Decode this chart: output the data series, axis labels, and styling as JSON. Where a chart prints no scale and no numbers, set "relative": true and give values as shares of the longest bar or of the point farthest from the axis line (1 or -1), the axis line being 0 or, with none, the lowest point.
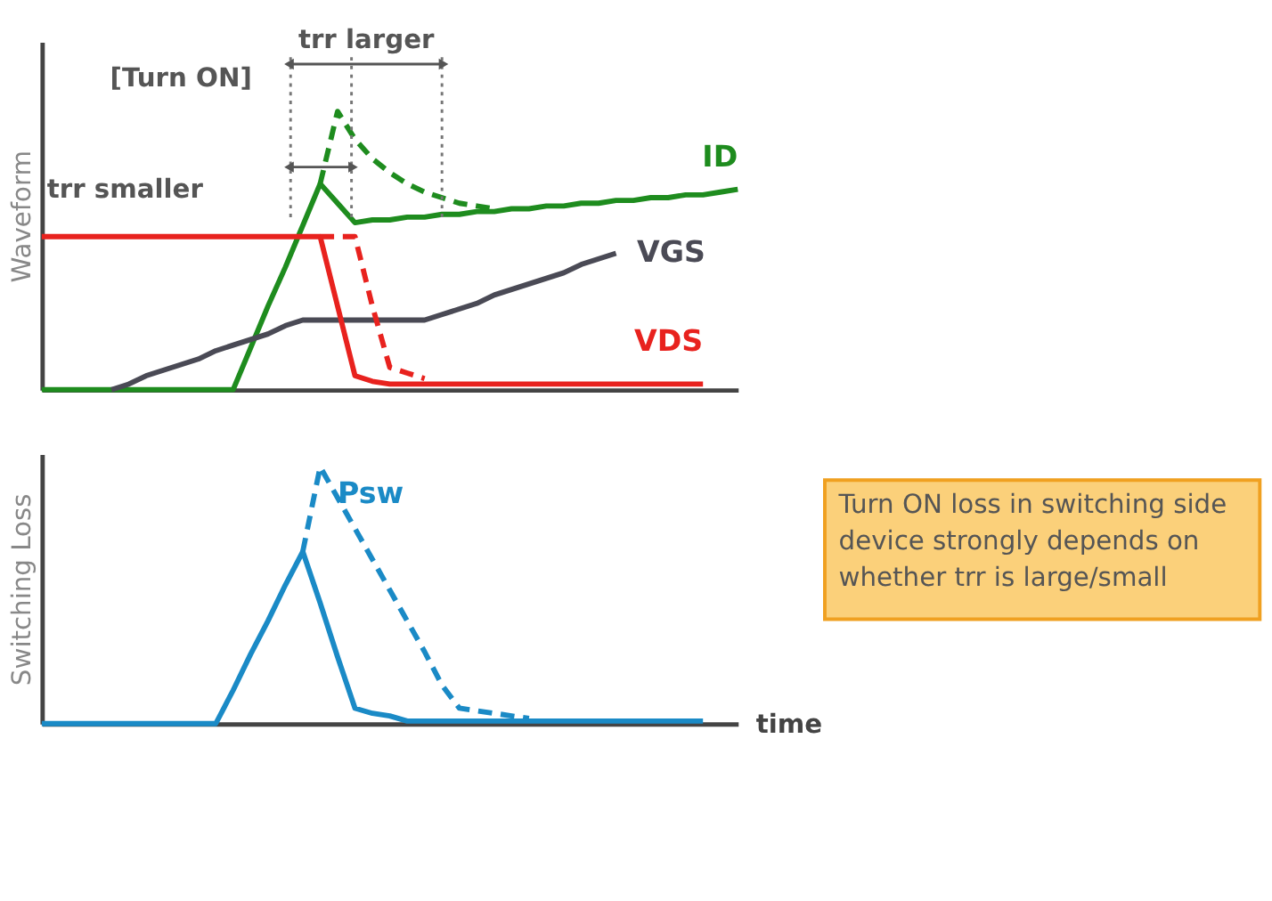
{
  "chart_data": [
    {
      "type": "line",
      "relative": true,
      "ylabel": "Waveform",
      "tick_labels": false,
      "categories": [
        null,
        null,
        null,
        null,
        null,
        null,
        null,
        null,
        null,
        null,
        null,
        null,
        null,
        null,
        null,
        null,
        null,
        null,
        null,
        null,
        null,
        null,
        null,
        null,
        null,
        null,
        null,
        null,
        null,
        null,
        null,
        null,
        null,
        null,
        null,
        null,
        null,
        null,
        null,
        null,
        null
      ],
      "annotations": [
        "[Turn ON]",
        "trr larger",
        "trr smaller"
      ],
      "series": [
        {
          "name": "ID",
          "color": "#1e8c1e",
          "line_style": "solid",
          "values": [
            0,
            0,
            0,
            0,
            0,
            0,
            0,
            0,
            0,
            0,
            0,
            0,
            0.15,
            0.3,
            0.44,
            0.59,
            0.74,
            0.67,
            0.6,
            0.61,
            0.61,
            0.62,
            0.62,
            0.63,
            0.63,
            0.64,
            0.64,
            0.65,
            0.65,
            0.66,
            0.66,
            0.67,
            0.67,
            0.68,
            0.68,
            0.69,
            0.69,
            0.7,
            0.7,
            0.71,
            0.72
          ]
        },
        {
          "color": "#1e8c1e",
          "line_style": "dashed",
          "values": [
            null,
            null,
            null,
            null,
            null,
            null,
            null,
            null,
            null,
            null,
            null,
            null,
            null,
            null,
            null,
            null,
            0.74,
            1.0,
            0.9,
            0.83,
            0.78,
            0.74,
            0.71,
            0.69,
            0.67,
            0.66,
            0.65,
            null,
            null,
            null,
            null,
            null,
            null,
            null,
            null,
            null,
            null,
            null,
            null,
            null,
            null
          ]
        },
        {
          "name": "VGS",
          "color": "#4a4a55",
          "line_style": "solid",
          "values": [
            null,
            null,
            null,
            null,
            0,
            0.02,
            0.05,
            0.07,
            0.09,
            0.11,
            0.14,
            0.16,
            0.18,
            0.2,
            0.23,
            0.25,
            0.25,
            0.25,
            0.25,
            0.25,
            0.25,
            0.25,
            0.25,
            0.27,
            0.29,
            0.31,
            0.34,
            0.36,
            0.38,
            0.4,
            0.42,
            0.45,
            0.47,
            0.49,
            null,
            null,
            null,
            null,
            null,
            null,
            null
          ]
        },
        {
          "name": "VDS",
          "color": "#e8221e",
          "line_style": "solid",
          "values": [
            0.55,
            0.55,
            0.55,
            0.55,
            0.55,
            0.55,
            0.55,
            0.55,
            0.55,
            0.55,
            0.55,
            0.55,
            0.55,
            0.55,
            0.55,
            0.55,
            0.55,
            0.3,
            0.05,
            0.03,
            0.02,
            0.02,
            0.02,
            0.02,
            0.02,
            0.02,
            0.02,
            0.02,
            0.02,
            0.02,
            0.02,
            0.02,
            0.02,
            0.02,
            0.02,
            0.02,
            0.02,
            0.02,
            0.02,
            null,
            null
          ]
        },
        {
          "color": "#e8221e",
          "line_style": "dashed",
          "values": [
            null,
            null,
            null,
            null,
            null,
            null,
            null,
            null,
            null,
            null,
            null,
            null,
            null,
            null,
            null,
            null,
            0.55,
            0.55,
            0.55,
            0.3,
            0.08,
            0.06,
            0.04,
            null,
            null,
            null,
            null,
            null,
            null,
            null,
            null,
            null,
            null,
            null,
            null,
            null,
            null,
            null,
            null,
            null,
            null
          ]
        }
      ]
    },
    {
      "type": "line",
      "relative": true,
      "ylabel": "Switching Loss",
      "xlabel": "time",
      "tick_labels": false,
      "categories": [
        null,
        null,
        null,
        null,
        null,
        null,
        null,
        null,
        null,
        null,
        null,
        null,
        null,
        null,
        null,
        null,
        null,
        null,
        null,
        null,
        null,
        null,
        null,
        null,
        null,
        null,
        null,
        null,
        null,
        null,
        null,
        null,
        null,
        null,
        null,
        null,
        null,
        null,
        null,
        null,
        null
      ],
      "annotations": [
        "Turn ON loss in switching side device strongly depends on whether trr is large/small"
      ],
      "series": [
        {
          "color": "#1a8ac6",
          "line_style": "solid",
          "values": [
            0,
            0,
            0,
            0,
            0,
            0,
            0,
            0,
            0,
            0,
            0,
            0.13,
            0.27,
            0.4,
            0.54,
            0.67,
            0.47,
            0.26,
            0.06,
            0.04,
            0.03,
            0.01,
            0.01,
            0.01,
            0.01,
            0.01,
            0.01,
            0.01,
            0.01,
            0.01,
            0.01,
            0.01,
            0.01,
            0.01,
            0.01,
            0.01,
            0.01,
            0.01,
            0.01,
            null,
            null
          ]
        },
        {
          "name": "Psw",
          "color": "#1a8ac6",
          "line_style": "dashed",
          "values": [
            null,
            null,
            null,
            null,
            null,
            null,
            null,
            null,
            null,
            null,
            null,
            null,
            null,
            null,
            null,
            0.67,
            1.0,
            0.88,
            0.76,
            0.64,
            0.52,
            0.4,
            0.28,
            0.15,
            0.06,
            0.05,
            0.04,
            0.03,
            0.02,
            null,
            null,
            null,
            null,
            null,
            null,
            null,
            null,
            null,
            null,
            null,
            null
          ]
        }
      ]
    }
  ]
}
